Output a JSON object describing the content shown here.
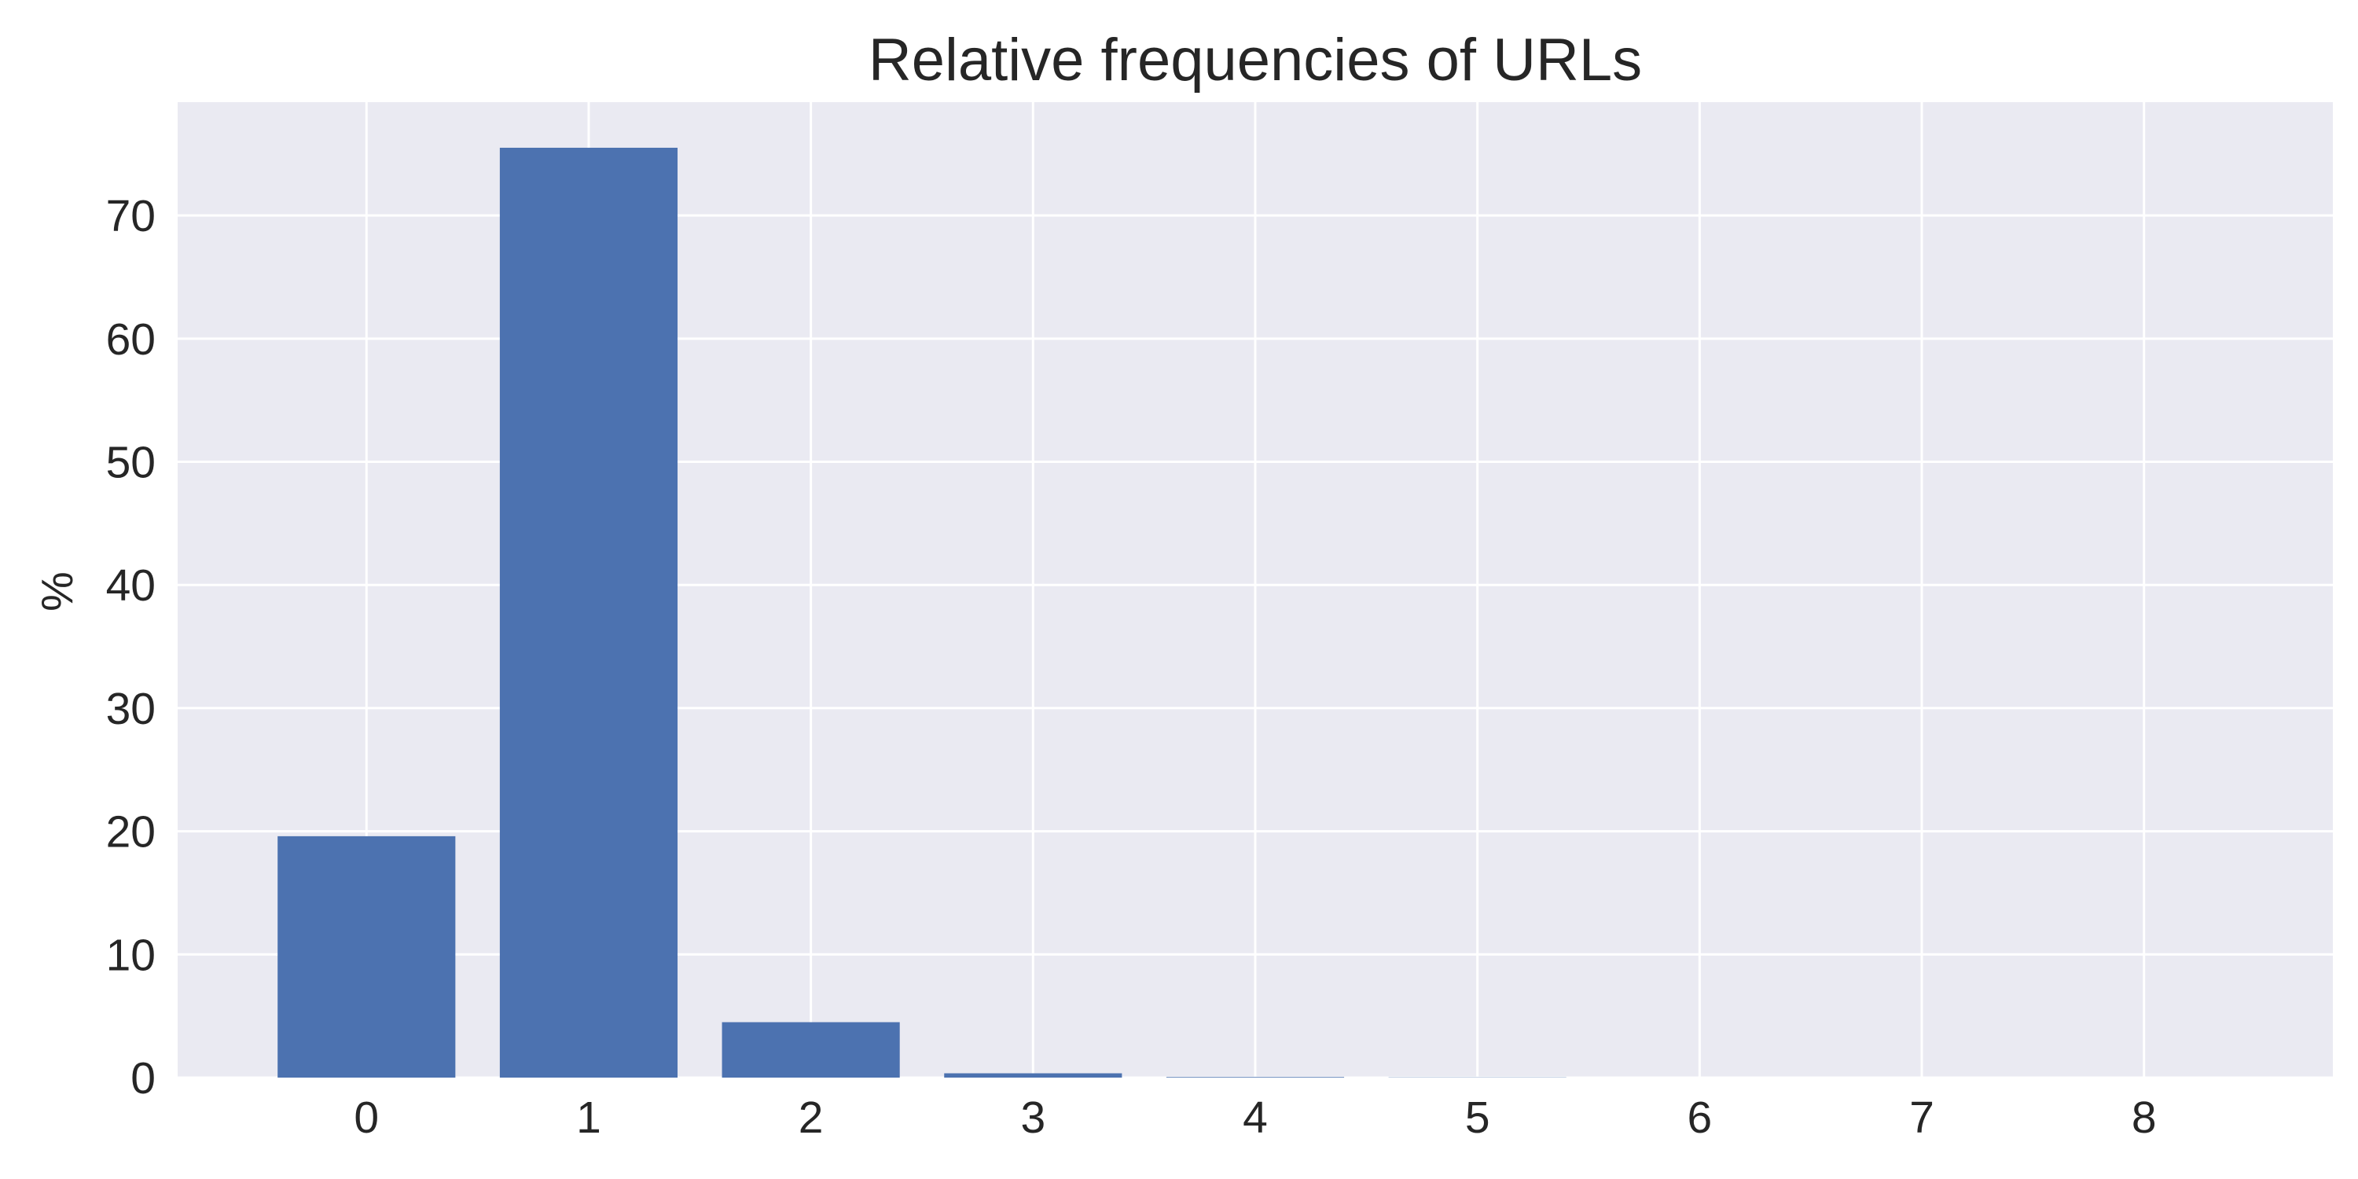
{
  "chart_data": {
    "type": "bar",
    "title": "Relative frequencies of URLs",
    "xlabel": "",
    "ylabel": "%",
    "categories": [
      "0",
      "1",
      "2",
      "3",
      "4",
      "5",
      "6",
      "7",
      "8"
    ],
    "values": [
      19.6,
      75.5,
      4.5,
      0.35,
      0.05,
      0.02,
      0.0,
      0.0,
      0.0
    ],
    "xlim": [
      -0.85,
      8.85
    ],
    "ylim": [
      0,
      79.2
    ],
    "yticks": [
      0,
      10,
      20,
      30,
      40,
      50,
      60,
      70
    ],
    "grid": true,
    "legend": false,
    "colors": {
      "bar": "#4c72b0",
      "plot_background": "#eaeaf2",
      "grid": "#ffffff",
      "text": "#262626"
    }
  }
}
